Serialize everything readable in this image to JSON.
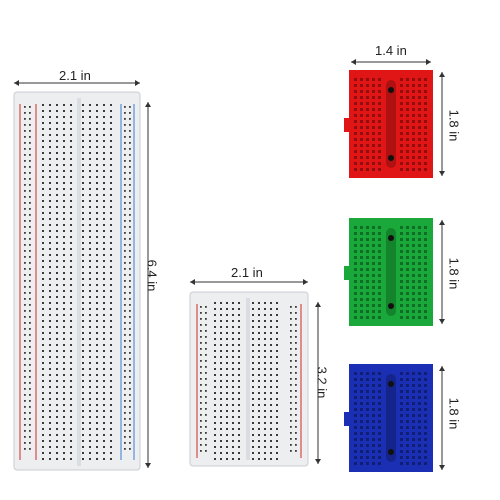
{
  "labels": {
    "large_width": "2.1 in",
    "large_height": "6.4 in",
    "half_width": "2.1 in",
    "half_height": "3.2 in",
    "red_width": "1.4 in",
    "red_height": "1.8 in",
    "green_height": "1.8 in",
    "blue_height": "1.8 in"
  },
  "colors": {
    "board_white": "#eceef0",
    "board_edge": "#c8ccd2",
    "hole": "#3a3a3a",
    "rail_red": "#d84b4b",
    "rail_blue": "#5a8fd8",
    "mini_red": "#e01616",
    "mini_green": "#19a839",
    "mini_blue": "#1a2fb3",
    "dim_line": "#333333"
  }
}
